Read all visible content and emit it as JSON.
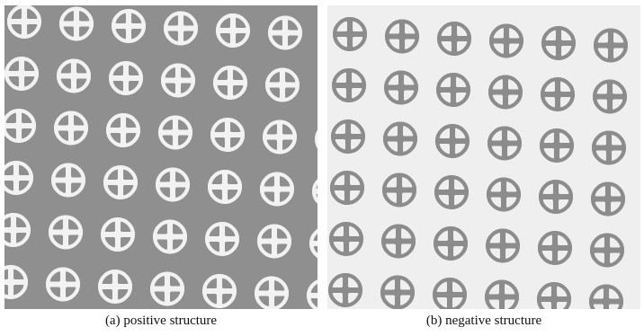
{
  "captions": {
    "a": "(a) positive structure",
    "b": "(b) negative structure"
  },
  "panels": {
    "a": {
      "background": "#8f8f8f",
      "pattern": "#f2f2f2",
      "cutout": "#8f8f8f"
    },
    "b": {
      "background": "#efefef",
      "pattern": "#8c8c8c",
      "cutout": "#efefef"
    }
  }
}
